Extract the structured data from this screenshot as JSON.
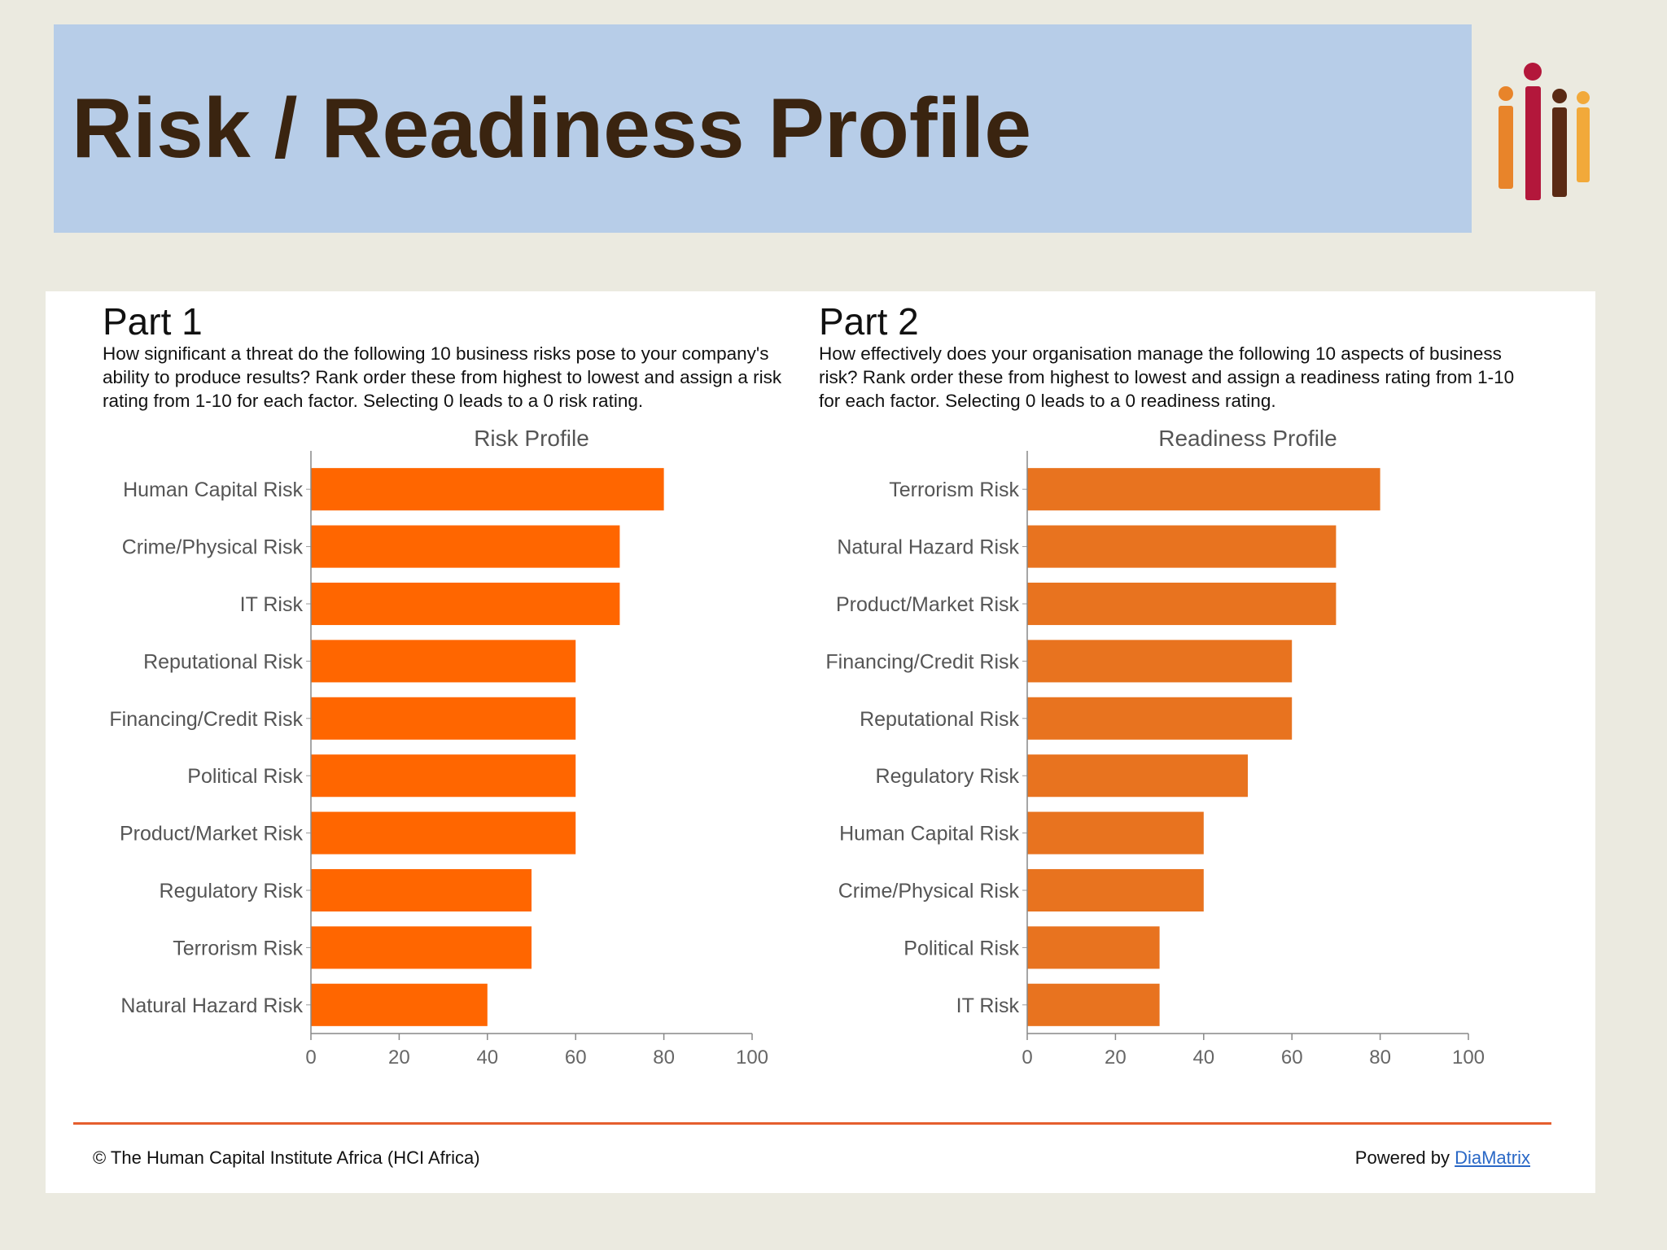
{
  "page": {
    "title": "Risk / Readiness Profile",
    "logo_colors": [
      "#e8842a",
      "#b3173b",
      "#5a2a14",
      "#f2a93a"
    ]
  },
  "parts": [
    {
      "heading": "Part 1",
      "description": "How significant a threat do the following 10 business risks pose to your company's ability to produce results? Rank order these from highest to lowest and assign a risk rating from 1-10 for each factor. Selecting 0 leads to a 0 risk rating."
    },
    {
      "heading": "Part 2",
      "description": "How effectively does your organisation manage the following 10 aspects of business risk? Rank order these from highest to lowest and assign a readiness rating from 1-10 for each factor. Selecting 0 leads to a 0 readiness rating."
    }
  ],
  "chart_data": [
    {
      "type": "bar",
      "orientation": "horizontal",
      "title": "Risk Profile",
      "categories": [
        "Human Capital Risk",
        "Crime/Physical Risk",
        "IT Risk",
        "Reputational Risk",
        "Financing/Credit Risk",
        "Political Risk",
        "Product/Market Risk",
        "Regulatory Risk",
        "Terrorism Risk",
        "Natural Hazard Risk"
      ],
      "values": [
        80,
        70,
        70,
        60,
        60,
        60,
        60,
        50,
        50,
        40
      ],
      "xlim": [
        0,
        100
      ],
      "xticks": [
        0,
        20,
        40,
        60,
        80,
        100
      ],
      "grid": false,
      "color": "#ff6600"
    },
    {
      "type": "bar",
      "orientation": "horizontal",
      "title": "Readiness Profile",
      "categories": [
        "Terrorism Risk",
        "Natural Hazard Risk",
        "Product/Market Risk",
        "Financing/Credit Risk",
        "Reputational Risk",
        "Regulatory Risk",
        "Human Capital Risk",
        "Crime/Physical Risk",
        "Political Risk",
        "IT Risk"
      ],
      "values": [
        80,
        70,
        70,
        60,
        60,
        50,
        40,
        40,
        30,
        30
      ],
      "xlim": [
        0,
        100
      ],
      "xticks": [
        0,
        20,
        40,
        60,
        80,
        100
      ],
      "grid": false,
      "color": "#e8731f"
    }
  ],
  "footer": {
    "copyright": "© The Human Capital Institute Africa (HCI Africa)",
    "powered_prefix": "Powered by ",
    "powered_link": "DiaMatrix"
  }
}
